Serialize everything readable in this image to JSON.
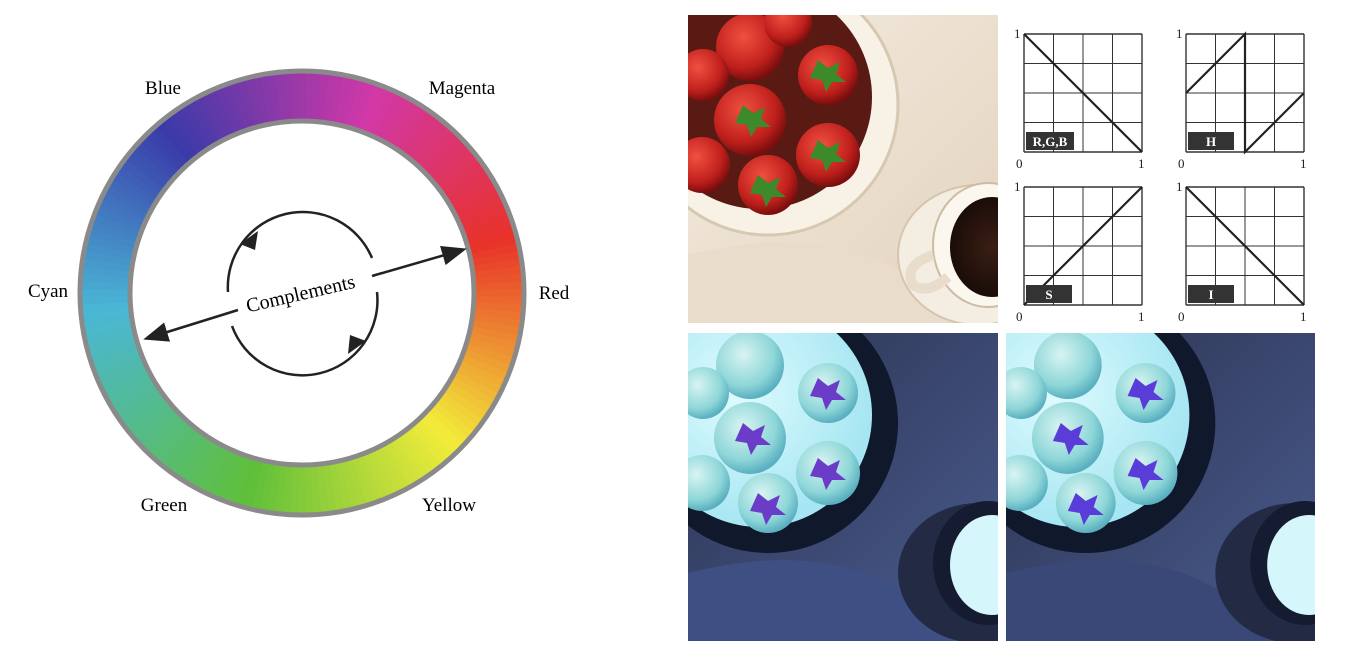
{
  "color_wheel": {
    "labels": {
      "blue": "Blue",
      "magenta": "Magenta",
      "red": "Red",
      "yellow": "Yellow",
      "green": "Green",
      "cyan": "Cyan"
    },
    "center_label": "Complements",
    "ring_colors": {
      "red": "#e8322a",
      "yellow": "#f2ec3a",
      "green": "#5fbf3a",
      "cyan": "#4ab7d6",
      "blue": "#3a3aa8",
      "magenta": "#d238a8"
    }
  },
  "transfer_plots": [
    {
      "label": "R,G,B",
      "x_min": "0",
      "x_max": "1",
      "y_max": "1",
      "points": [
        [
          0,
          1
        ],
        [
          1,
          0
        ]
      ]
    },
    {
      "label": "H",
      "x_min": "0",
      "x_max": "1",
      "y_max": "1",
      "points": [
        [
          0,
          0.5
        ],
        [
          0.5,
          1
        ],
        [
          0.5,
          0
        ],
        [
          1,
          0.5
        ]
      ]
    },
    {
      "label": "S",
      "x_min": "0",
      "x_max": "1",
      "y_max": "1",
      "points": [
        [
          0,
          0
        ],
        [
          1,
          1
        ]
      ]
    },
    {
      "label": "I",
      "x_min": "0",
      "x_max": "1",
      "y_max": "1",
      "points": [
        [
          0,
          1
        ],
        [
          1,
          0
        ]
      ]
    }
  ],
  "photos": {
    "original": "strawberries in white bowl and coffee cup",
    "complement_rgb": "color complement computed in RGB",
    "complement_hsi": "color complement computed in HSI"
  }
}
